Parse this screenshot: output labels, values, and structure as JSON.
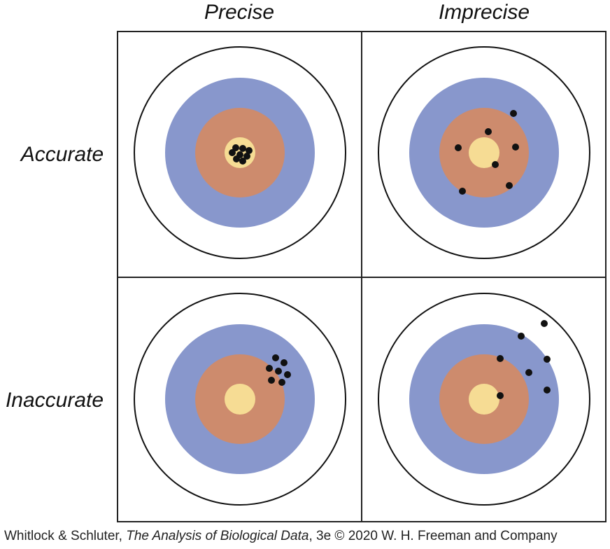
{
  "headers": {
    "columns": [
      "Precise",
      "Imprecise"
    ],
    "rows": [
      "Accurate",
      "Inaccurate"
    ]
  },
  "panels": [
    {
      "id": "accurate-precise",
      "hits": [
        [
          -6,
          -7
        ],
        [
          4,
          -6
        ],
        [
          13,
          -3
        ],
        [
          -11,
          0
        ],
        [
          0,
          3
        ],
        [
          10,
          5
        ],
        [
          -5,
          9
        ],
        [
          4,
          12
        ]
      ]
    },
    {
      "id": "accurate-imprecise",
      "hits": [
        [
          42,
          -56
        ],
        [
          6,
          -30
        ],
        [
          -37,
          -7
        ],
        [
          45,
          -8
        ],
        [
          16,
          17
        ],
        [
          -31,
          55
        ],
        [
          36,
          47
        ]
      ]
    },
    {
      "id": "inaccurate-precise",
      "hits": [
        [
          51,
          -59
        ],
        [
          63,
          -52
        ],
        [
          42,
          -44
        ],
        [
          55,
          -40
        ],
        [
          68,
          -35
        ],
        [
          45,
          -27
        ],
        [
          60,
          -24
        ]
      ]
    },
    {
      "id": "inaccurate-imprecise",
      "hits": [
        [
          86,
          -108
        ],
        [
          53,
          -90
        ],
        [
          23,
          -58
        ],
        [
          90,
          -57
        ],
        [
          64,
          -38
        ],
        [
          90,
          -13
        ],
        [
          23,
          -5
        ]
      ]
    }
  ],
  "colors": {
    "outer_ring": "#ffffff",
    "blue_ring": "#8897cc",
    "orange_ring": "#cd8b6d",
    "bullseye": "#f6dc94",
    "hit": "#111111",
    "frame": "#222222"
  },
  "caption": {
    "authors": "Whitlock & Schluter, ",
    "title": "The Analysis of Biological Data",
    "rest": ", 3e © 2020 W. H. Freeman and Company"
  }
}
